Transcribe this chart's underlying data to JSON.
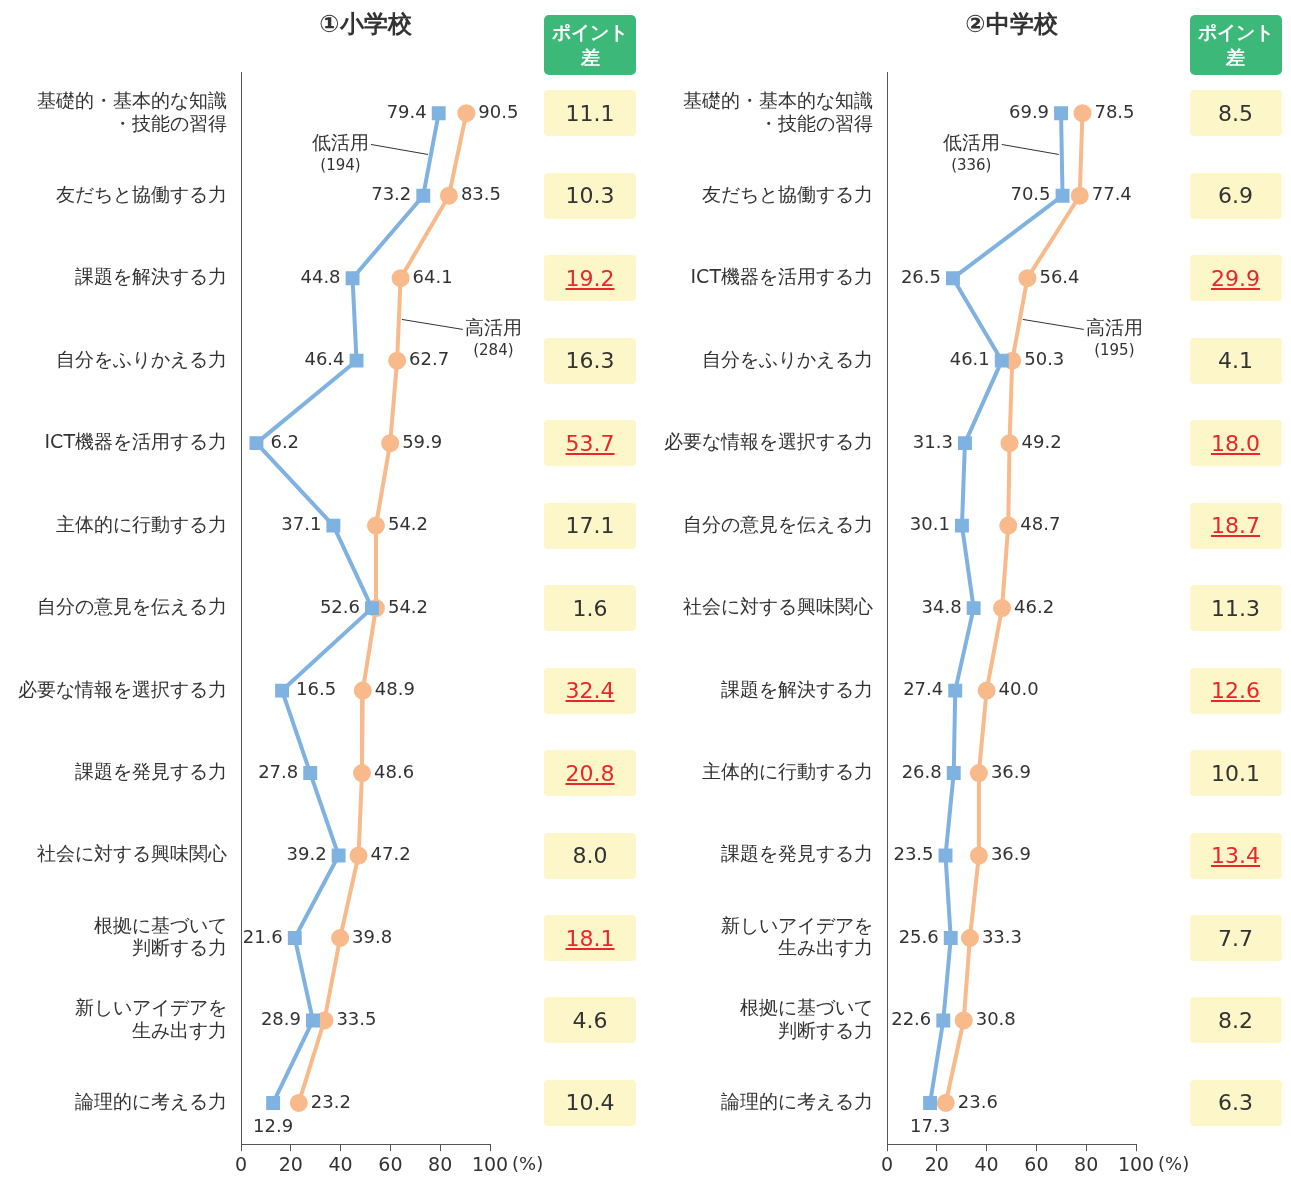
{
  "chart_data": [
    {
      "type": "line",
      "orientation": "horizontal",
      "title": "①小学校",
      "xlabel": "(%)",
      "categories": [
        "基礎的・基本的な知識・技能の習得",
        "友だちと協働する力",
        "課題を解決する力",
        "自分をふりかえる力",
        "ICT機器を活用する力",
        "主体的に行動する力",
        "自分の意見を伝える力",
        "必要な情報を選択する力",
        "課題を発見する力",
        "社会に対する興味関心",
        "根拠に基づいて判断する力",
        "新しいアイデアを生み出す力",
        "論理的に考える力"
      ],
      "xlim": [
        0,
        100
      ],
      "xticks": [
        0,
        20,
        40,
        60,
        80,
        100
      ],
      "grid": false,
      "legend": false,
      "series": [
        {
          "name": "低活用 (194)",
          "color": "#7fb2e0",
          "marker": "square",
          "values": [
            79.4,
            73.2,
            44.8,
            46.4,
            6.2,
            37.1,
            52.6,
            16.5,
            27.8,
            39.2,
            21.6,
            28.9,
            12.9
          ],
          "value_labels": [
            "79.4",
            "73.2",
            "44.8",
            "46.4",
            "6.2",
            "37.1",
            "52.6",
            "16.5",
            "27.8",
            "39.2",
            "21.6",
            "28.9",
            "12.9"
          ]
        },
        {
          "name": "高活用 (284)",
          "color": "#f8b98b",
          "marker": "circle",
          "values": [
            90.5,
            83.5,
            64.1,
            62.7,
            59.9,
            54.2,
            54.2,
            48.9,
            48.6,
            47.2,
            39.8,
            33.5,
            23.2
          ],
          "value_labels": [
            "90.5",
            "83.5",
            "64.1",
            "62.7",
            "59.9",
            "54.2",
            "54.2",
            "48.9",
            "48.6",
            "47.2",
            "39.8",
            "33.5",
            "23.2"
          ]
        }
      ]
    },
    {
      "type": "other",
      "title": "ポイント差",
      "value_labels": [
        "11.1",
        "10.3",
        "19.2",
        "16.3",
        "53.7",
        "17.1",
        "1.6",
        "32.4",
        "20.8",
        "8.0",
        "18.1",
        "4.6",
        "10.4"
      ],
      "colors": [
        "#333333",
        "#333333",
        "#e8272b",
        "#333333",
        "#e8272b",
        "#333333",
        "#333333",
        "#e8272b",
        "#e8272b",
        "#333333",
        "#e8272b",
        "#333333",
        "#333333"
      ]
    },
    {
      "type": "line",
      "orientation": "horizontal",
      "title": "②中学校",
      "xlabel": "(%)",
      "categories": [
        "基礎的・基本的な知識・技能の習得",
        "友だちと協働する力",
        "ICT機器を活用する力",
        "自分をふりかえる力",
        "必要な情報を選択する力",
        "自分の意見を伝える力",
        "社会に対する興味関心",
        "課題を解決する力",
        "主体的に行動する力",
        "課題を発見する力",
        "新しいアイデアを生み出す力",
        "根拠に基づいて判断する力",
        "論理的に考える力"
      ],
      "xlim": [
        0,
        100
      ],
      "xticks": [
        0,
        20,
        40,
        60,
        80,
        100
      ],
      "grid": false,
      "legend": false,
      "series": [
        {
          "name": "低活用 (336)",
          "color": "#7fb2e0",
          "marker": "square",
          "values": [
            69.9,
            70.5,
            26.5,
            46.1,
            31.3,
            30.1,
            34.8,
            27.4,
            26.8,
            23.5,
            25.6,
            22.6,
            17.3
          ],
          "value_labels": [
            "69.9",
            "70.5",
            "26.5",
            "46.1",
            "31.3",
            "30.1",
            "34.8",
            "27.4",
            "26.8",
            "23.5",
            "25.6",
            "22.6",
            "17.3"
          ]
        },
        {
          "name": "高活用 (195)",
          "color": "#f8b98b",
          "marker": "circle",
          "values": [
            78.5,
            77.4,
            56.4,
            50.3,
            49.2,
            48.7,
            46.2,
            40.0,
            36.9,
            36.9,
            33.3,
            30.8,
            23.6
          ],
          "value_labels": [
            "78.5",
            "77.4",
            "56.4",
            "50.3",
            "49.2",
            "48.7",
            "46.2",
            "40.0",
            "36.9",
            "36.9",
            "33.3",
            "30.8",
            "23.6"
          ]
        }
      ]
    },
    {
      "type": "other",
      "title": "ポイント差",
      "value_labels": [
        "8.5",
        "6.9",
        "29.9",
        "4.1",
        "18.0",
        "18.7",
        "11.3",
        "12.6",
        "10.1",
        "13.4",
        "7.7",
        "8.2",
        "6.3"
      ],
      "colors": [
        "#333333",
        "#333333",
        "#e8272b",
        "#333333",
        "#e8272b",
        "#e8272b",
        "#333333",
        "#e8272b",
        "#333333",
        "#e8272b",
        "#333333",
        "#333333",
        "#333333"
      ]
    }
  ]
}
